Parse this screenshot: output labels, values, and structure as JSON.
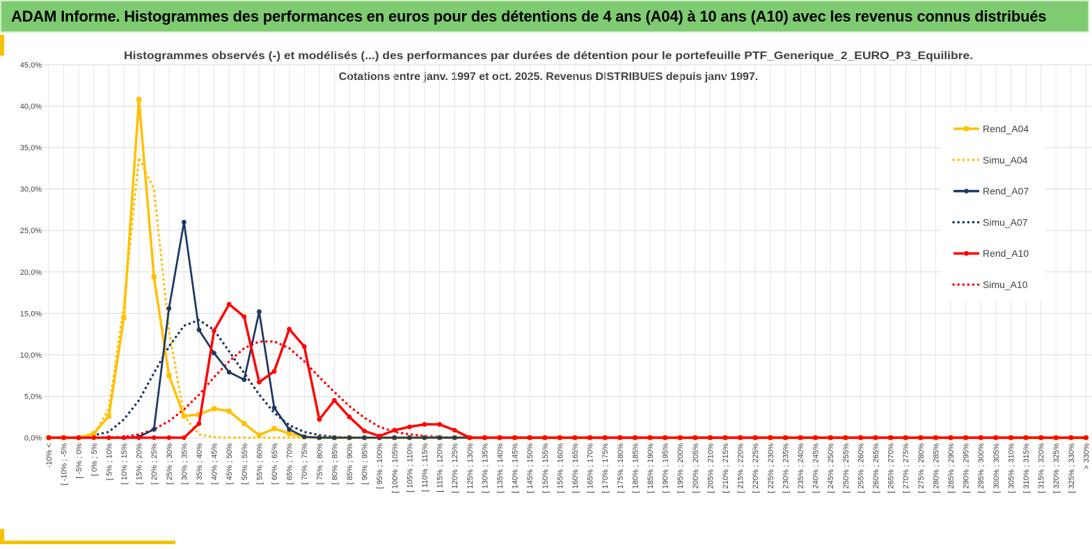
{
  "header": {
    "title": "ADAM Informe. Histogrammes des performances en euros pour des détentions de 4 ans (A04) à 10 ans (A10) avec les revenus connus distribués"
  },
  "chart_data": {
    "type": "line",
    "title_line1": "Histogrammes observés (-) et modélisés (...) des performances par durées de détention pour le portefeuille PTF_Generique_2_EURO_P3_Equilibre.",
    "title_line2": "Cotations entre janv. 1997 et oct. 2025. Revenus DISTRIBUES depuis janv 1997.",
    "ylim": [
      0,
      45
    ],
    "yticks": [
      "0,0%",
      "5,0%",
      "10,0%",
      "15,0%",
      "20,0%",
      "25,0%",
      "30,0%",
      "35,0%",
      "40,0%",
      "45,0%"
    ],
    "grid": true,
    "legend_position": "right",
    "categories": [
      "-10% <",
      "[ -10% ; -5%",
      "[ -5% ; 0%",
      "[ 0% ; 5%",
      "[ 5% ; 10%",
      "[ 10% ; 15%",
      "[ 15% ; 20%",
      "[ 20% ; 25%",
      "[ 25% ; 30%",
      "[ 30% ; 35%",
      "[ 35% ; 40%",
      "[ 40% ; 45%",
      "[ 45% ; 50%",
      "[ 50% ; 55%",
      "[ 55% ; 60%",
      "[ 60% ; 65%",
      "[ 65% ; 70%",
      "[ 70% ; 75%",
      "[ 75% ; 80%",
      "[ 80% ; 85%",
      "[ 85% ; 90%",
      "[ 90% ; 95%",
      "[ 95% ; 100%",
      "[ 100% ; 105%",
      "[ 105% ; 110%",
      "[ 110% ; 115%",
      "[ 115% ; 120%",
      "[ 120% ; 125%",
      "[ 125% ; 130%",
      "[ 130% ; 135%",
      "[ 135% ; 140%",
      "[ 140% ; 145%",
      "[ 145% ; 150%",
      "[ 150% ; 155%",
      "[ 155% ; 160%",
      "[ 160% ; 165%",
      "[ 165% ; 170%",
      "[ 170% ; 175%",
      "[ 175% ; 180%",
      "[ 180% ; 185%",
      "[ 185% ; 190%",
      "[ 190% ; 195%",
      "[ 195% ; 200%",
      "[ 200% ; 205%",
      "[ 205% ; 210%",
      "[ 210% ; 215%",
      "[ 215% ; 220%",
      "[ 220% ; 225%",
      "[ 225% ; 230%",
      "[ 230% ; 235%",
      "[ 235% ; 240%",
      "[ 240% ; 245%",
      "[ 245% ; 250%",
      "[ 250% ; 255%",
      "[ 255% ; 260%",
      "[ 260% ; 265%",
      "[ 265% ; 270%",
      "[ 270% ; 275%",
      "[ 275% ; 280%",
      "[ 280% ; 285%",
      "[ 285% ; 290%",
      "[ 290% ; 295%",
      "[ 295% ; 300%",
      "[ 300% ; 305%",
      "[ 305% ; 310%",
      "[ 310% ; 315%",
      "[ 315% ; 320%",
      "[ 320% ; 325%",
      "[ 325% ; 330%",
      "> 330%"
    ],
    "series": [
      {
        "name": "Rend_A04",
        "style": "solid",
        "marker": "square",
        "color": "#ffc000",
        "values": [
          0,
          0,
          0,
          0.5,
          2.6,
          14.5,
          40.8,
          19.4,
          7.5,
          2.6,
          2.8,
          3.5,
          3.2,
          1.7,
          0.3,
          1.1,
          0.5,
          0.1,
          0,
          0,
          0,
          0,
          0,
          0,
          0,
          0,
          0,
          0,
          0,
          0,
          0,
          0,
          0,
          0,
          0,
          0,
          0,
          0,
          0,
          0,
          0,
          0,
          0,
          0,
          0,
          0,
          0,
          0,
          0,
          0,
          0,
          0,
          0,
          0,
          0,
          0,
          0,
          0,
          0,
          0,
          0,
          0,
          0,
          0,
          0,
          0,
          0,
          0,
          0,
          0
        ]
      },
      {
        "name": "Simu_A04",
        "style": "dotted",
        "marker": "none",
        "color": "#ffc000",
        "values": [
          0,
          0,
          0,
          0.3,
          3.5,
          16,
          33.8,
          30,
          13,
          2.6,
          0.4,
          0.05,
          0,
          0,
          0,
          0,
          0,
          0,
          0,
          0,
          0,
          0,
          0,
          0,
          0,
          0,
          0,
          0,
          0,
          0,
          0,
          0,
          0,
          0,
          0,
          0,
          0,
          0,
          0,
          0,
          0,
          0,
          0,
          0,
          0,
          0,
          0,
          0,
          0,
          0,
          0,
          0,
          0,
          0,
          0,
          0,
          0,
          0,
          0,
          0,
          0,
          0,
          0,
          0,
          0,
          0,
          0,
          0,
          0,
          0
        ]
      },
      {
        "name": "Rend_A07",
        "style": "solid",
        "marker": "circle",
        "color": "#1f3864",
        "values": [
          0,
          0,
          0,
          0,
          0,
          0,
          0.1,
          1,
          15.6,
          26,
          13,
          10.2,
          7.9,
          7,
          15.2,
          3.6,
          1,
          0.1,
          0,
          0,
          0,
          0,
          0,
          0,
          0,
          0,
          0,
          0,
          0,
          0,
          0,
          0,
          0,
          0,
          0,
          0,
          0,
          0,
          0,
          0,
          0,
          0,
          0,
          0,
          0,
          0,
          0,
          0,
          0,
          0,
          0,
          0,
          0,
          0,
          0,
          0,
          0,
          0,
          0,
          0,
          0,
          0,
          0,
          0,
          0,
          0,
          0,
          0,
          0,
          0
        ]
      },
      {
        "name": "Simu_A07",
        "style": "dotted",
        "marker": "none",
        "color": "#1f3864",
        "values": [
          0,
          0,
          0,
          0.3,
          0.7,
          2.2,
          4.5,
          7.8,
          11,
          13.5,
          14.2,
          13,
          10.4,
          7.8,
          5.2,
          3,
          1.5,
          0.7,
          0.3,
          0.1,
          0,
          0,
          0,
          0,
          0,
          0,
          0,
          0,
          0,
          0,
          0,
          0,
          0,
          0,
          0,
          0,
          0,
          0,
          0,
          0,
          0,
          0,
          0,
          0,
          0,
          0,
          0,
          0,
          0,
          0,
          0,
          0,
          0,
          0,
          0,
          0,
          0,
          0,
          0,
          0,
          0,
          0,
          0,
          0,
          0,
          0,
          0,
          0,
          0,
          0
        ]
      },
      {
        "name": "Rend_A10",
        "style": "solid",
        "marker": "circle",
        "color": "#ff0000",
        "values": [
          0,
          0,
          0,
          0,
          0,
          0,
          0,
          0,
          0,
          0,
          1.7,
          12.9,
          16.1,
          14.6,
          6.7,
          8,
          13.1,
          11,
          2.2,
          4.5,
          2.5,
          0.8,
          0.2,
          0.9,
          1.3,
          1.6,
          1.6,
          0.9,
          0,
          0,
          0,
          0,
          0,
          0,
          0,
          0,
          0,
          0,
          0,
          0,
          0,
          0,
          0,
          0,
          0,
          0,
          0,
          0,
          0,
          0,
          0,
          0,
          0,
          0,
          0,
          0,
          0,
          0,
          0,
          0,
          0,
          0,
          0,
          0,
          0,
          0,
          0,
          0,
          0,
          0
        ]
      },
      {
        "name": "Simu_A10",
        "style": "dotted",
        "marker": "none",
        "color": "#ff0000",
        "values": [
          0,
          0,
          0,
          0,
          0,
          0.1,
          0.4,
          1,
          2,
          3.4,
          5.2,
          7.3,
          9.2,
          10.8,
          11.6,
          11.6,
          10.8,
          9.2,
          7.3,
          5.5,
          3.8,
          2.4,
          1.3,
          0.7,
          0.4,
          0.2,
          0.1,
          0,
          0,
          0,
          0,
          0,
          0,
          0,
          0,
          0,
          0,
          0,
          0,
          0,
          0,
          0,
          0,
          0,
          0,
          0,
          0,
          0,
          0,
          0,
          0,
          0,
          0,
          0,
          0,
          0,
          0,
          0,
          0,
          0,
          0,
          0,
          0,
          0,
          0,
          0,
          0,
          0,
          0,
          0
        ]
      }
    ]
  }
}
